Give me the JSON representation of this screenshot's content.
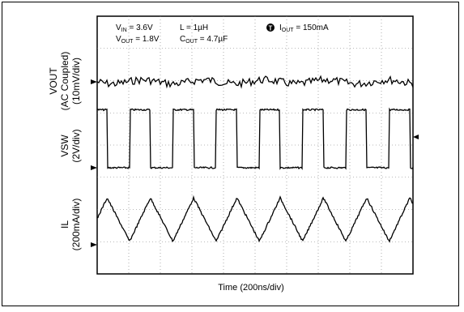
{
  "chart_data": {
    "type": "line",
    "title": "",
    "header": {
      "vin": "3.6V",
      "vout": "1.8V",
      "l": "1µH",
      "cout": "4.7µF",
      "iout": "150mA",
      "trigger_icon": "T"
    },
    "xlabel": "Time (200ns/div)",
    "x_divisions": 10,
    "y_divisions": 8,
    "grid": true,
    "series": [
      {
        "name": "VOUT",
        "label_line1": "VOUT",
        "label_line2": "(AC Coupled)",
        "label_line3": "(10mV/div)",
        "waveform": "noise_ripple",
        "amplitude_div": 0.15
      },
      {
        "name": "VSW",
        "label_line1": "VSW",
        "label_line2": "(2V/div)",
        "waveform": "square",
        "periods_shown": 7.3,
        "high_div": 1.8,
        "low_div": 0
      },
      {
        "name": "IL",
        "label_line1": "IL",
        "label_line2": "(200mA/div)",
        "waveform": "triangle",
        "periods_shown": 7.3,
        "pk_pk_div": 1.35
      }
    ],
    "colors": {
      "trace": "#000000",
      "grid": "#777777"
    }
  },
  "labels": {
    "vin_prefix": "V",
    "vin_sub": "IN",
    "vout_prefix": "V",
    "vout_sub": "OUT",
    "l_text": "L = 1µH",
    "cout_prefix": "C",
    "cout_sub": "OUT",
    "iout_prefix": "I",
    "iout_sub": "OUT",
    "vin_value": " = 3.6V",
    "vout_value": " = 1.8V",
    "cout_value": " = 4.7µF",
    "iout_value": " = 150mA"
  }
}
